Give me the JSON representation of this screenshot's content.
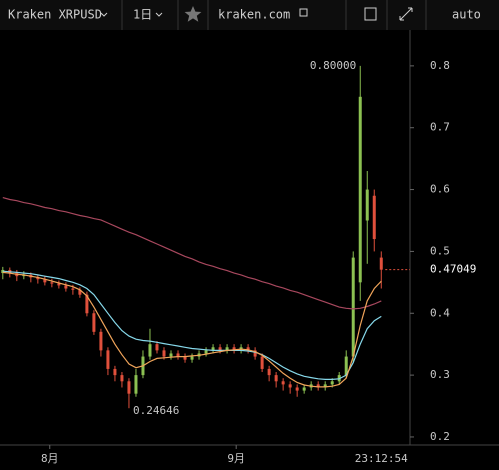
{
  "toolbar": {
    "symbol": "Kraken XRPUSD",
    "interval": "1日",
    "site": "kraken.com",
    "scale_mode": "auto"
  },
  "chart_data": {
    "type": "candlestick",
    "open": [
      0.465,
      0.47,
      0.465,
      0.46,
      0.462,
      0.458,
      0.455,
      0.45,
      0.448,
      0.445,
      0.44,
      0.438,
      0.43,
      0.4,
      0.37,
      0.34,
      0.31,
      0.3,
      0.29,
      0.27,
      0.3,
      0.33,
      0.35,
      0.34,
      0.33,
      0.335,
      0.33,
      0.325,
      0.33,
      0.335,
      0.34,
      0.345,
      0.34,
      0.345,
      0.34,
      0.345,
      0.34,
      0.33,
      0.31,
      0.3,
      0.29,
      0.285,
      0.28,
      0.275,
      0.28,
      0.285,
      0.28,
      0.285,
      0.29,
      0.3,
      0.33,
      0.45,
      0.55,
      0.59,
      0.49
    ],
    "high": [
      0.475,
      0.474,
      0.47,
      0.468,
      0.466,
      0.462,
      0.46,
      0.456,
      0.453,
      0.45,
      0.446,
      0.442,
      0.435,
      0.405,
      0.375,
      0.345,
      0.315,
      0.305,
      0.295,
      0.31,
      0.34,
      0.375,
      0.355,
      0.345,
      0.34,
      0.34,
      0.335,
      0.335,
      0.34,
      0.345,
      0.35,
      0.35,
      0.35,
      0.35,
      0.35,
      0.35,
      0.345,
      0.335,
      0.315,
      0.305,
      0.295,
      0.29,
      0.285,
      0.285,
      0.29,
      0.29,
      0.29,
      0.295,
      0.305,
      0.34,
      0.5,
      0.8,
      0.63,
      0.6,
      0.5
    ],
    "low": [
      0.455,
      0.458,
      0.452,
      0.455,
      0.45,
      0.448,
      0.445,
      0.442,
      0.44,
      0.435,
      0.43,
      0.425,
      0.395,
      0.365,
      0.33,
      0.3,
      0.29,
      0.28,
      0.24646,
      0.265,
      0.295,
      0.325,
      0.335,
      0.325,
      0.325,
      0.325,
      0.32,
      0.32,
      0.325,
      0.33,
      0.335,
      0.335,
      0.335,
      0.335,
      0.335,
      0.335,
      0.325,
      0.305,
      0.29,
      0.28,
      0.275,
      0.27,
      0.265,
      0.27,
      0.275,
      0.275,
      0.275,
      0.28,
      0.285,
      0.295,
      0.32,
      0.42,
      0.48,
      0.5,
      0.44
    ],
    "close": [
      0.47,
      0.465,
      0.46,
      0.462,
      0.458,
      0.455,
      0.45,
      0.448,
      0.445,
      0.44,
      0.438,
      0.43,
      0.4,
      0.37,
      0.34,
      0.31,
      0.3,
      0.29,
      0.27,
      0.3,
      0.33,
      0.35,
      0.34,
      0.33,
      0.335,
      0.33,
      0.325,
      0.33,
      0.335,
      0.34,
      0.345,
      0.34,
      0.345,
      0.34,
      0.345,
      0.34,
      0.33,
      0.31,
      0.3,
      0.29,
      0.285,
      0.28,
      0.275,
      0.28,
      0.285,
      0.28,
      0.285,
      0.29,
      0.3,
      0.33,
      0.49,
      0.75,
      0.6,
      0.52,
      0.47049
    ],
    "up_color": "#8cc152",
    "down_color": "#e0503c",
    "lines": [
      {
        "color": "#a8485e",
        "values": [
          0.587,
          0.584,
          0.582,
          0.579,
          0.577,
          0.574,
          0.571,
          0.569,
          0.566,
          0.564,
          0.561,
          0.558,
          0.556,
          0.553,
          0.551,
          0.546,
          0.541,
          0.536,
          0.531,
          0.527,
          0.522,
          0.517,
          0.512,
          0.507,
          0.502,
          0.497,
          0.492,
          0.488,
          0.483,
          0.479,
          0.476,
          0.472,
          0.469,
          0.465,
          0.462,
          0.458,
          0.455,
          0.451,
          0.448,
          0.444,
          0.441,
          0.437,
          0.434,
          0.43,
          0.426,
          0.422,
          0.418,
          0.414,
          0.41,
          0.408,
          0.407,
          0.408,
          0.411,
          0.415,
          0.42
        ]
      },
      {
        "color": "#86d8ea",
        "values": [
          0.468,
          0.467,
          0.466,
          0.465,
          0.464,
          0.462,
          0.46,
          0.458,
          0.456,
          0.453,
          0.45,
          0.446,
          0.44,
          0.43,
          0.415,
          0.4,
          0.385,
          0.372,
          0.363,
          0.358,
          0.356,
          0.355,
          0.353,
          0.351,
          0.349,
          0.347,
          0.345,
          0.343,
          0.342,
          0.341,
          0.34,
          0.34,
          0.34,
          0.34,
          0.34,
          0.339,
          0.337,
          0.333,
          0.327,
          0.32,
          0.313,
          0.307,
          0.302,
          0.298,
          0.296,
          0.294,
          0.293,
          0.293,
          0.294,
          0.3,
          0.32,
          0.35,
          0.375,
          0.388,
          0.395
        ]
      },
      {
        "color": "#f0a45a",
        "values": [
          0.466,
          0.465,
          0.463,
          0.462,
          0.46,
          0.458,
          0.455,
          0.452,
          0.449,
          0.446,
          0.443,
          0.438,
          0.428,
          0.41,
          0.39,
          0.37,
          0.35,
          0.333,
          0.318,
          0.312,
          0.315,
          0.322,
          0.327,
          0.328,
          0.329,
          0.33,
          0.33,
          0.331,
          0.332,
          0.334,
          0.336,
          0.338,
          0.34,
          0.341,
          0.342,
          0.341,
          0.338,
          0.332,
          0.323,
          0.313,
          0.303,
          0.295,
          0.288,
          0.284,
          0.282,
          0.281,
          0.281,
          0.282,
          0.285,
          0.295,
          0.33,
          0.38,
          0.42,
          0.44,
          0.452
        ]
      }
    ],
    "ylim": [
      0.187,
      0.858
    ],
    "yticks": [
      0.2,
      0.3,
      0.4,
      0.5,
      0.6,
      0.7,
      0.8
    ],
    "xlim": [
      -0.4,
      58.1
    ],
    "xticks": [
      {
        "value": 6.7,
        "label": "8月"
      },
      {
        "value": 33.3,
        "label": "9月"
      }
    ],
    "max_label": "0.80000",
    "min_label": "0.24646",
    "last_price": "0.47049",
    "time_label": "23:12:54"
  }
}
